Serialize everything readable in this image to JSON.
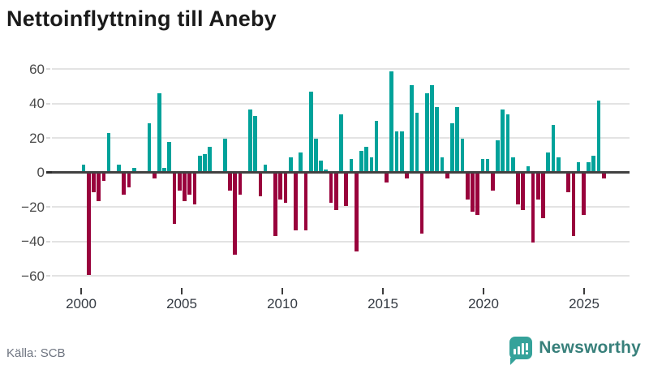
{
  "title": "Nettoinflyttning till Aneby",
  "source": "Källa: SCB",
  "brand": {
    "name": "Newsworthy"
  },
  "colors": {
    "positive": "#00a29a",
    "negative": "#99023c",
    "grid": "#e3e3e3",
    "zero_line": "#414141",
    "axis_text": "#4a4a4a",
    "title_text": "#1a1a1a",
    "source_text": "#6e7480",
    "brand_teal": "#35a29a",
    "brand_text": "#38807b"
  },
  "chart_data": {
    "type": "bar",
    "title": "Nettoinflyttning till Aneby",
    "x_start": "2000-Q1",
    "frequency": "quarterly",
    "x_tick_labels": [
      "2000",
      "2005",
      "2010",
      "2015",
      "2020",
      "2025"
    ],
    "y_ticks": [
      60,
      40,
      20,
      0,
      -20,
      -40,
      -60
    ],
    "ylim": [
      -65,
      65
    ],
    "grid": true,
    "legend": "none",
    "positive_color": "#00a29a",
    "negative_color": "#99023c",
    "values": [
      4,
      -59,
      -11,
      -16,
      -4,
      22,
      0,
      4,
      -12,
      -8,
      2,
      0,
      0,
      28,
      -3,
      45,
      2,
      17,
      -29,
      -10,
      -16,
      -12,
      -18,
      9,
      10,
      14,
      0,
      0,
      19,
      -10,
      -47,
      -12,
      0,
      36,
      32,
      -13,
      4,
      0,
      -36,
      -15,
      -17,
      8,
      -33,
      11,
      -33,
      46,
      19,
      6,
      1,
      -17,
      -21,
      33,
      -19,
      7,
      -45,
      12,
      14,
      8,
      29,
      0,
      -5,
      58,
      23,
      23,
      -3,
      50,
      34,
      -35,
      45,
      50,
      37,
      8,
      -3,
      28,
      37,
      19,
      -15,
      -22,
      -24,
      7,
      7,
      -10,
      18,
      36,
      33,
      8,
      -18,
      -21,
      3,
      -40,
      -15,
      -26,
      11,
      27,
      8,
      0,
      -11,
      -36,
      5,
      -24,
      5,
      9,
      41,
      -3
    ]
  }
}
